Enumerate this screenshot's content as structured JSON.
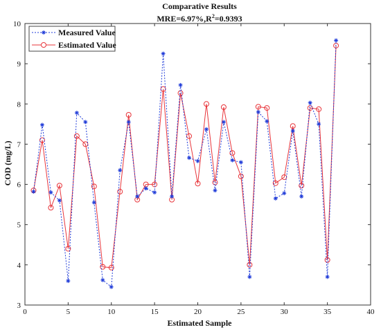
{
  "chart_data": {
    "type": "line",
    "title": "Comparative Results",
    "subtitle_parts": {
      "prefix": "MRE=6.97%,R",
      "sup": "2",
      "suffix": "=0.9393"
    },
    "xlabel": "Estimated Sample",
    "ylabel": "COD (mg/L)",
    "xlim": [
      0,
      40
    ],
    "ylim": [
      3,
      10
    ],
    "xticks": [
      "0",
      "5",
      "10",
      "15",
      "20",
      "25",
      "30",
      "35",
      "40"
    ],
    "yticks": [
      "3",
      "4",
      "5",
      "6",
      "7",
      "8",
      "9",
      "10"
    ],
    "x": [
      1,
      2,
      3,
      4,
      5,
      6,
      7,
      8,
      9,
      10,
      11,
      12,
      13,
      14,
      15,
      16,
      17,
      18,
      19,
      20,
      21,
      22,
      23,
      24,
      25,
      26,
      27,
      28,
      29,
      30,
      31,
      32,
      33,
      34,
      35,
      36
    ],
    "series": [
      {
        "name": "Measured Value",
        "color": "#1f3bd8",
        "style": "dotted",
        "marker": "star",
        "values": [
          5.82,
          7.48,
          5.8,
          5.6,
          3.6,
          7.78,
          7.55,
          5.55,
          3.62,
          3.45,
          6.35,
          7.55,
          5.7,
          5.9,
          5.8,
          9.25,
          5.7,
          8.47,
          6.66,
          6.58,
          7.37,
          5.85,
          7.55,
          6.6,
          6.55,
          3.7,
          7.8,
          7.57,
          5.65,
          5.78,
          7.33,
          5.7,
          8.03,
          7.5,
          3.7,
          9.58
        ]
      },
      {
        "name": "Estimated Value",
        "color": "#e8343a",
        "style": "solid",
        "marker": "circle",
        "values": [
          5.85,
          7.1,
          5.42,
          5.97,
          4.4,
          7.2,
          7.0,
          5.95,
          3.95,
          3.93,
          5.82,
          7.73,
          5.62,
          6.0,
          6.0,
          8.37,
          5.62,
          8.27,
          7.2,
          6.02,
          8.0,
          6.05,
          7.92,
          6.78,
          6.2,
          4.0,
          7.93,
          7.9,
          6.03,
          6.18,
          7.45,
          5.97,
          7.9,
          7.87,
          4.12,
          9.45
        ]
      }
    ],
    "legend_position": "top-left",
    "grid": false
  }
}
